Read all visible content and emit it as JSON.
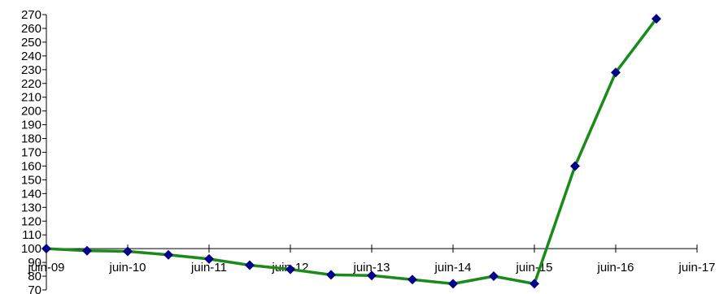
{
  "chart_data": {
    "type": "line",
    "title": "",
    "xlabel": "",
    "ylabel": "",
    "x_axis": {
      "type": "date",
      "range": [
        "2009-06",
        "2017-06"
      ],
      "tick_labels": [
        "juin-09",
        "juin-10",
        "juin-11",
        "juin-12",
        "juin-13",
        "juin-14",
        "juin-15",
        "juin-16",
        "juin-17"
      ],
      "tick_values": [
        "2009-06",
        "2010-06",
        "2011-06",
        "2012-06",
        "2013-06",
        "2014-06",
        "2015-06",
        "2016-06",
        "2017-06"
      ],
      "crosses_y_at": 100
    },
    "y_axis": {
      "range": [
        70,
        270
      ],
      "tick_step": 10,
      "tick_labels": [
        "70",
        "80",
        "90",
        "100",
        "110",
        "120",
        "130",
        "140",
        "150",
        "160",
        "170",
        "180",
        "190",
        "200",
        "210",
        "220",
        "230",
        "240",
        "250",
        "260",
        "270"
      ]
    },
    "grid": false,
    "legend": "none",
    "series": [
      {
        "line_color": "#1a8a1a",
        "marker_color": "#00008b",
        "marker": "diamond",
        "points": [
          {
            "x": "2009-06",
            "y": 100
          },
          {
            "x": "2009-12",
            "y": 98.5
          },
          {
            "x": "2010-06",
            "y": 98
          },
          {
            "x": "2010-12",
            "y": 95.5
          },
          {
            "x": "2011-06",
            "y": 92.5
          },
          {
            "x": "2011-12",
            "y": 88
          },
          {
            "x": "2012-06",
            "y": 85
          },
          {
            "x": "2012-12",
            "y": 81
          },
          {
            "x": "2013-06",
            "y": 80.5
          },
          {
            "x": "2013-12",
            "y": 77.5
          },
          {
            "x": "2014-06",
            "y": 74.5
          },
          {
            "x": "2014-12",
            "y": 80
          },
          {
            "x": "2015-06",
            "y": 74.5
          },
          {
            "x": "2015-12",
            "y": 160
          },
          {
            "x": "2016-06",
            "y": 228
          },
          {
            "x": "2016-12",
            "y": 267
          }
        ]
      }
    ]
  }
}
